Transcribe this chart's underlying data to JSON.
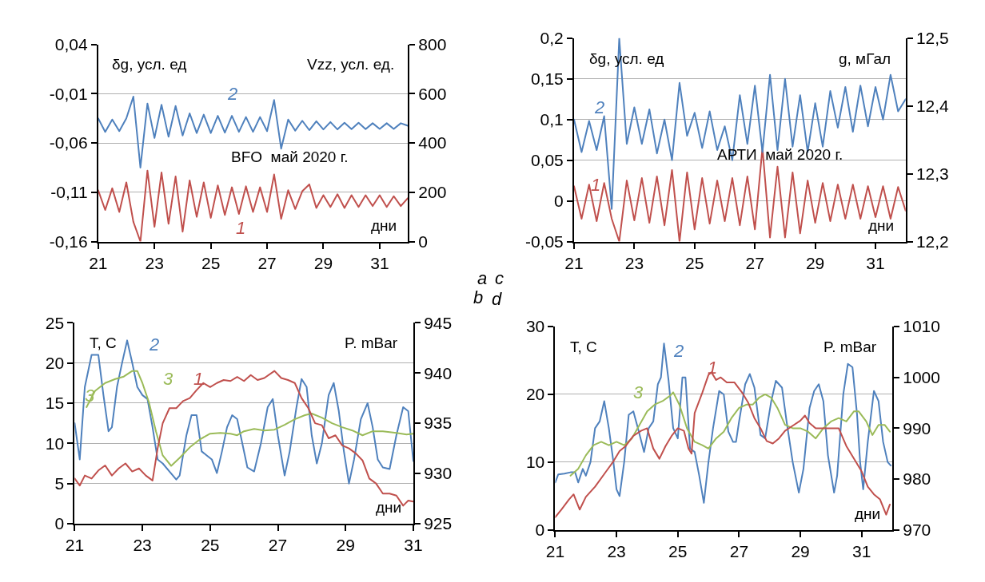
{
  "chart_data": [
    {
      "type": "line",
      "title": "BFO  май 2020 г.",
      "xlabel": "дни",
      "ylabel": "δg, усл. ед",
      "y2label": "Vzz, усл. ед.",
      "x": [
        21,
        21.25,
        21.5,
        21.75,
        22,
        22.25,
        22.5,
        22.75,
        23,
        23.25,
        23.5,
        23.75,
        24,
        24.25,
        24.5,
        24.75,
        25,
        25.25,
        25.5,
        25.75,
        26,
        26.25,
        26.5,
        26.75,
        27,
        27.25,
        27.5,
        27.75,
        28,
        28.25,
        28.5,
        28.75,
        29,
        29.25,
        29.5,
        29.75,
        30,
        30.25,
        30.5,
        30.75,
        31,
        31.25,
        31.5,
        31.75,
        32
      ],
      "series": [
        {
          "name": "1",
          "color": "#c0504d",
          "values": [
            -0.108,
            -0.128,
            -0.106,
            -0.13,
            -0.1,
            -0.14,
            -0.16,
            -0.088,
            -0.145,
            -0.09,
            -0.142,
            -0.094,
            -0.15,
            -0.098,
            -0.135,
            -0.1,
            -0.136,
            -0.103,
            -0.133,
            -0.105,
            -0.132,
            -0.104,
            -0.13,
            -0.105,
            -0.13,
            -0.092,
            -0.137,
            -0.108,
            -0.127,
            -0.109,
            -0.102,
            -0.126,
            -0.113,
            -0.125,
            -0.112,
            -0.126,
            -0.113,
            -0.125,
            -0.113,
            -0.124,
            -0.113,
            -0.125,
            -0.114,
            -0.124,
            -0.116
          ]
        },
        {
          "name": "2",
          "color": "#4f81bd",
          "axis": "y2",
          "values": [
            500,
            445,
            495,
            448,
            500,
            588,
            300,
            560,
            420,
            555,
            425,
            550,
            430,
            520,
            440,
            515,
            440,
            510,
            442,
            510,
            445,
            505,
            445,
            505,
            448,
            574,
            377,
            495,
            450,
            490,
            452,
            488,
            455,
            485,
            455,
            482,
            456,
            482,
            456,
            480,
            457,
            480,
            457,
            480,
            470
          ]
        }
      ],
      "xlim": [
        21,
        32
      ],
      "xticks": [
        21,
        23,
        25,
        27,
        29,
        31
      ],
      "ylim": [
        -0.16,
        0.04
      ],
      "yticks": [
        {
          "value": -0.16,
          "label": "-0,16"
        },
        {
          "value": -0.11,
          "label": "-0,11"
        },
        {
          "value": -0.06,
          "label": "-0,06"
        },
        {
          "value": -0.01,
          "label": "-0,01"
        },
        {
          "value": 0.04,
          "label": "0,04"
        }
      ],
      "y2lim": [
        0,
        800
      ],
      "y2ticks": [
        0,
        200,
        400,
        600,
        800
      ],
      "annotations": [
        "a"
      ],
      "grid": "y",
      "legend": false,
      "marker": "none",
      "line_style": "solid"
    },
    {
      "type": "line",
      "title": "АРТИ  май 2020 г.",
      "xlabel": "дни",
      "ylabel": "δg, усл. ед",
      "y2label": "g, мГал",
      "x": [
        21,
        21.25,
        21.5,
        21.75,
        22,
        22.25,
        22.5,
        22.75,
        23,
        23.25,
        23.5,
        23.75,
        24,
        24.25,
        24.5,
        24.75,
        25,
        25.25,
        25.5,
        25.75,
        26,
        26.25,
        26.5,
        26.75,
        27,
        27.25,
        27.5,
        27.75,
        28,
        28.25,
        28.5,
        28.75,
        29,
        29.25,
        29.5,
        29.75,
        30,
        30.25,
        30.5,
        30.75,
        31,
        31.25,
        31.5,
        31.75,
        32
      ],
      "series": [
        {
          "name": "1",
          "color": "#c0504d",
          "values": [
            0.018,
            -0.022,
            0.02,
            -0.025,
            0.022,
            -0.022,
            -0.05,
            0.025,
            -0.024,
            0.028,
            -0.027,
            0.03,
            -0.03,
            0.038,
            -0.05,
            0.035,
            -0.035,
            0.028,
            -0.028,
            0.025,
            -0.025,
            0.028,
            -0.03,
            0.03,
            -0.035,
            0.065,
            -0.045,
            0.042,
            -0.045,
            0.035,
            -0.04,
            0.025,
            -0.027,
            0.022,
            -0.025,
            0.02,
            -0.022,
            0.02,
            -0.022,
            0.018,
            -0.02,
            0.018,
            -0.022,
            0.017,
            -0.012
          ]
        },
        {
          "name": "2",
          "color": "#4f81bd",
          "axis": "y2",
          "values": [
            12.38,
            12.332,
            12.378,
            12.335,
            12.385,
            12.248,
            12.5,
            12.344,
            12.398,
            12.344,
            12.395,
            12.33,
            12.38,
            12.32,
            12.434,
            12.356,
            12.39,
            12.338,
            12.392,
            12.335,
            12.37,
            12.32,
            12.416,
            12.344,
            12.43,
            12.332,
            12.446,
            12.335,
            12.44,
            12.34,
            12.416,
            12.332,
            12.404,
            12.34,
            12.422,
            12.368,
            12.428,
            12.362,
            12.43,
            12.37,
            12.428,
            12.38,
            12.446,
            12.392,
            12.41
          ]
        }
      ],
      "xlim": [
        21,
        32
      ],
      "xticks": [
        21,
        23,
        25,
        27,
        29,
        31
      ],
      "ylim": [
        -0.05,
        0.2
      ],
      "yticks": [
        {
          "value": -0.05,
          "label": "-0,05"
        },
        0,
        {
          "value": 0.05,
          "label": "0,05"
        },
        {
          "value": 0.1,
          "label": "0,1"
        },
        {
          "value": 0.15,
          "label": "0,15"
        },
        {
          "value": 0.2,
          "label": "0,2"
        }
      ],
      "y2lim": [
        12.2,
        12.5
      ],
      "y2ticks": [
        {
          "value": 12.2,
          "label": "12,2"
        },
        {
          "value": 12.3,
          "label": "12,3"
        },
        {
          "value": 12.4,
          "label": "12,4"
        },
        {
          "value": 12.5,
          "label": "12,5"
        }
      ],
      "annotations": [
        "c"
      ],
      "grid": "y",
      "legend": false,
      "marker": "none",
      "line_style": "solid"
    },
    {
      "type": "line",
      "xlabel": "дни",
      "ylabel": "T, С",
      "y2label": "P. mBar",
      "series": [
        {
          "name": "1",
          "color": "#c0504d",
          "axis": "y2",
          "x": [
            21,
            21.15,
            21.3,
            21.5,
            21.7,
            21.9,
            22.1,
            22.3,
            22.5,
            22.7,
            22.9,
            23.1,
            23.3,
            23.45,
            23.6,
            23.8,
            24,
            24.2,
            24.4,
            24.6,
            24.8,
            25,
            25.2,
            25.4,
            25.6,
            25.8,
            26,
            26.2,
            26.4,
            26.6,
            26.9,
            27.1,
            27.3,
            27.5,
            27.7,
            27.9,
            28.1,
            28.3,
            28.5,
            28.7,
            28.9,
            29.1,
            29.3,
            29.5,
            29.7,
            29.9,
            30.1,
            30.3,
            30.5,
            30.7,
            30.85,
            31
          ],
          "values": [
            929.5,
            928.8,
            929.8,
            929.5,
            930.3,
            930.8,
            929.8,
            930.5,
            931,
            930.2,
            930.5,
            929.8,
            929.3,
            932.5,
            935,
            936.5,
            936.5,
            937.2,
            937.5,
            938.3,
            939,
            938.6,
            939,
            939.3,
            939.2,
            939.6,
            939.2,
            939.8,
            939.3,
            939.5,
            940.2,
            939.5,
            939.3,
            939,
            937.5,
            936.5,
            935,
            934.8,
            933.5,
            933.8,
            932.8,
            932.5,
            932,
            931.3,
            929.5,
            929,
            928,
            928,
            927.8,
            926.8,
            927.3,
            927.2
          ]
        },
        {
          "name": "2",
          "color": "#4f81bd",
          "x": [
            21,
            21.15,
            21.3,
            21.5,
            21.7,
            21.85,
            22,
            22.1,
            22.25,
            22.4,
            22.55,
            22.7,
            22.85,
            23,
            23.15,
            23.3,
            23.45,
            23.6,
            23.8,
            24,
            24.1,
            24.3,
            24.45,
            24.6,
            24.75,
            24.9,
            25.05,
            25.2,
            25.35,
            25.5,
            25.65,
            25.8,
            25.95,
            26.1,
            26.3,
            26.5,
            26.7,
            26.85,
            27,
            27.2,
            27.35,
            27.55,
            27.7,
            27.85,
            28,
            28.15,
            28.3,
            28.5,
            28.65,
            28.8,
            28.95,
            29.1,
            29.25,
            29.45,
            29.65,
            29.8,
            29.95,
            30.1,
            30.3,
            30.5,
            30.7,
            30.85,
            31
          ],
          "values": [
            12.5,
            8,
            17,
            21,
            21,
            16,
            11.5,
            12,
            17,
            20,
            22.8,
            20,
            17,
            16,
            15.5,
            12,
            8,
            7.5,
            6.5,
            5.5,
            6,
            11,
            13.5,
            13.5,
            9,
            8.5,
            8,
            6.3,
            9,
            12,
            13.5,
            13,
            10,
            7,
            6.5,
            10,
            14.5,
            15.5,
            11,
            6,
            9,
            14.5,
            18,
            17,
            11,
            7.5,
            10,
            16,
            17.5,
            14,
            9,
            5,
            8,
            13,
            15,
            12,
            8,
            7,
            6.8,
            11,
            14.5,
            14,
            7.8
          ]
        },
        {
          "name": "3",
          "color": "#9bbb59",
          "x": [
            21.35,
            21.6,
            21.9,
            22.2,
            22.45,
            22.7,
            22.85,
            23,
            23.2,
            23.4,
            23.6,
            23.85,
            24.1,
            24.4,
            24.7,
            25,
            25.3,
            25.6,
            25.8,
            26,
            26.3,
            26.6,
            26.9,
            27.2,
            27.5,
            27.8,
            28,
            28.3,
            28.6,
            28.9,
            29.2,
            29.5,
            29.8,
            30.1,
            30.5,
            30.8,
            31
          ],
          "values": [
            14.5,
            16.5,
            17.5,
            18,
            18.3,
            19,
            19,
            17.5,
            15,
            11.5,
            8.5,
            7.2,
            8.2,
            9.5,
            10.5,
            11.2,
            11.3,
            11.2,
            11,
            11.5,
            11.8,
            11.6,
            11.7,
            12.3,
            13,
            13.5,
            13.7,
            13.2,
            12.5,
            12,
            11.6,
            11,
            11.5,
            11.5,
            11.3,
            11.1,
            11.2
          ]
        }
      ],
      "xlim": [
        21,
        31
      ],
      "xticks": [
        21,
        23,
        25,
        27,
        29,
        31
      ],
      "ylim": [
        0,
        25
      ],
      "yticks": [
        0,
        5,
        10,
        15,
        20,
        25
      ],
      "y2lim": [
        925,
        945
      ],
      "y2ticks": [
        925,
        930,
        935,
        940,
        945
      ],
      "annotations": [
        "b"
      ],
      "grid": "y",
      "legend": false,
      "marker": "none",
      "line_style": "solid"
    },
    {
      "type": "line",
      "xlabel": "дни",
      "ylabel": "T, С",
      "y2label": "P. mBar",
      "series": [
        {
          "name": "2",
          "color": "#4f81bd",
          "x": [
            21,
            21.1,
            21.3,
            21.5,
            21.65,
            21.75,
            21.9,
            22,
            22.15,
            22.3,
            22.45,
            22.6,
            22.75,
            22.9,
            23,
            23.1,
            23.25,
            23.4,
            23.55,
            23.7,
            23.9,
            24.05,
            24.2,
            24.35,
            24.45,
            24.55,
            24.7,
            24.85,
            25,
            25.15,
            25.25,
            25.4,
            25.55,
            25.7,
            25.85,
            26,
            26.15,
            26.35,
            26.5,
            26.65,
            26.8,
            26.9,
            27,
            27.2,
            27.35,
            27.5,
            27.7,
            27.85,
            28.05,
            28.2,
            28.4,
            28.55,
            28.75,
            28.95,
            29.1,
            29.3,
            29.45,
            29.6,
            29.75,
            29.9,
            30.1,
            30.2,
            30.4,
            30.55,
            30.7,
            30.85,
            30.95,
            31.05,
            31.2,
            31.4,
            31.55,
            31.7,
            31.85,
            31.95
          ],
          "values": [
            7,
            8.2,
            8.3,
            8.5,
            8.5,
            7,
            9,
            8,
            10,
            15,
            16,
            19,
            15,
            10,
            6,
            5,
            10,
            17,
            17.5,
            15,
            11.5,
            15,
            16,
            21.5,
            22.5,
            27.5,
            22,
            15,
            13.5,
            22.5,
            22.5,
            12,
            11.5,
            8,
            4,
            10,
            15,
            20.5,
            20,
            14.5,
            13,
            13,
            16,
            21.5,
            23,
            21,
            14,
            13.5,
            19,
            22,
            21,
            16,
            10,
            5.5,
            9,
            18,
            20.5,
            21.5,
            19,
            11,
            5.5,
            8,
            20,
            24.5,
            24,
            17,
            10,
            6,
            13,
            20.5,
            19,
            13,
            10,
            9.5
          ]
        },
        {
          "name": "1",
          "color": "#c0504d",
          "axis": "y2",
          "x": [
            21,
            21.2,
            21.45,
            21.6,
            21.8,
            22,
            22.3,
            22.6,
            22.9,
            23.1,
            23.3,
            23.55,
            23.8,
            24,
            24.2,
            24.4,
            24.6,
            24.8,
            25,
            25.2,
            25.35,
            25.45,
            25.55,
            25.8,
            26,
            26.1,
            26.25,
            26.4,
            26.6,
            26.85,
            27.1,
            27.3,
            27.5,
            27.7,
            27.9,
            28.1,
            28.3,
            28.5,
            28.75,
            29,
            29.15,
            29.3,
            29.5,
            29.75,
            30,
            30.25,
            30.5,
            30.8,
            31,
            31.2,
            31.4,
            31.6,
            31.8,
            31.92
          ],
          "values": [
            972.5,
            974,
            976,
            977,
            974,
            976.5,
            978.5,
            981,
            983.5,
            985.5,
            986.5,
            988.5,
            989.5,
            990,
            986,
            984,
            986.5,
            988.5,
            990,
            989.5,
            986,
            985,
            993,
            997,
            1000.5,
            1001,
            999.5,
            1000,
            999,
            999,
            997,
            995,
            992,
            990,
            987.5,
            987,
            988,
            989.5,
            990.5,
            991.5,
            992.5,
            991,
            990,
            990,
            990,
            990,
            986.5,
            983.5,
            981.5,
            978.5,
            977,
            976,
            973,
            975
          ]
        },
        {
          "name": "3",
          "color": "#9bbb59",
          "x": [
            21.5,
            21.75,
            22,
            22.25,
            22.5,
            22.75,
            23,
            23.25,
            23.5,
            23.75,
            24,
            24.25,
            24.5,
            24.75,
            24.85,
            25.05,
            25.3,
            25.55,
            25.8,
            26,
            26.25,
            26.5,
            26.75,
            27,
            27.25,
            27.45,
            27.65,
            27.85,
            28.05,
            28.25,
            28.5,
            28.75,
            29,
            29.25,
            29.5,
            29.75,
            30,
            30.25,
            30.5,
            30.75,
            30.9,
            31.15,
            31.35,
            31.55,
            31.75,
            31.92
          ],
          "values": [
            8,
            9,
            11,
            12.5,
            13,
            12.5,
            13,
            12.5,
            13.5,
            15.5,
            17.5,
            18.5,
            19,
            19.8,
            20.3,
            18.5,
            15,
            13,
            12.5,
            12,
            13.5,
            14.5,
            16.5,
            18,
            18.5,
            18.5,
            19.5,
            20,
            19.5,
            18,
            15.5,
            15,
            15,
            14.5,
            13.5,
            15,
            16,
            16.5,
            16,
            17.5,
            17.5,
            16,
            14,
            15.5,
            15.5,
            14.5
          ]
        }
      ],
      "xlim": [
        21,
        32
      ],
      "xticks": [
        21,
        23,
        25,
        27,
        29,
        31
      ],
      "ylim": [
        0,
        30
      ],
      "yticks": [
        0,
        10,
        20,
        30
      ],
      "y2lim": [
        970,
        1010
      ],
      "y2ticks": [
        970,
        980,
        990,
        1000,
        1010
      ],
      "annotations": [
        "d"
      ],
      "grid": "y",
      "legend": false,
      "marker": "none",
      "line_style": "solid"
    }
  ]
}
